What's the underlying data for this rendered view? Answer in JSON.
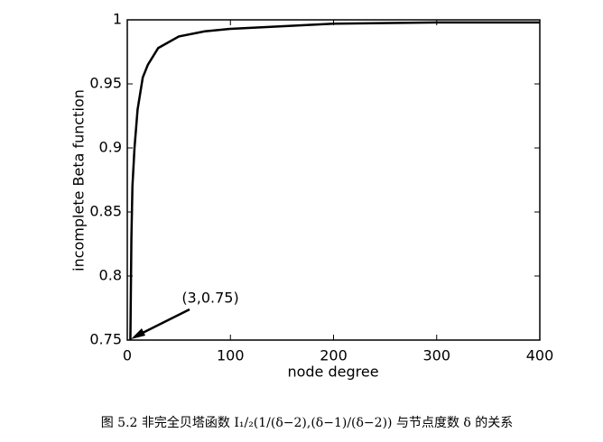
{
  "chart_data": {
    "type": "line",
    "x_label": "node degree",
    "y_label": "incomplete Beta function",
    "x": [
      3,
      4,
      5,
      7,
      10,
      15,
      20,
      30,
      50,
      75,
      100,
      150,
      200,
      300,
      400
    ],
    "values": [
      0.75,
      0.83,
      0.87,
      0.9,
      0.93,
      0.955,
      0.965,
      0.978,
      0.987,
      0.991,
      0.993,
      0.995,
      0.997,
      0.998,
      0.998
    ],
    "color": "#000000",
    "xlim": [
      0,
      400
    ],
    "xticks": [
      0,
      100,
      200,
      300,
      400
    ],
    "ylim": [
      0.75,
      1
    ],
    "yticks": [
      0.75,
      0.8,
      0.85,
      0.9,
      0.95,
      1
    ],
    "annotation": "(3,0.75)",
    "caption": "图 5.2 非完全贝塔函数 I₁/₂(1/(δ−2),(δ−1)/(δ−2)) 与节点度数 δ 的关系"
  }
}
